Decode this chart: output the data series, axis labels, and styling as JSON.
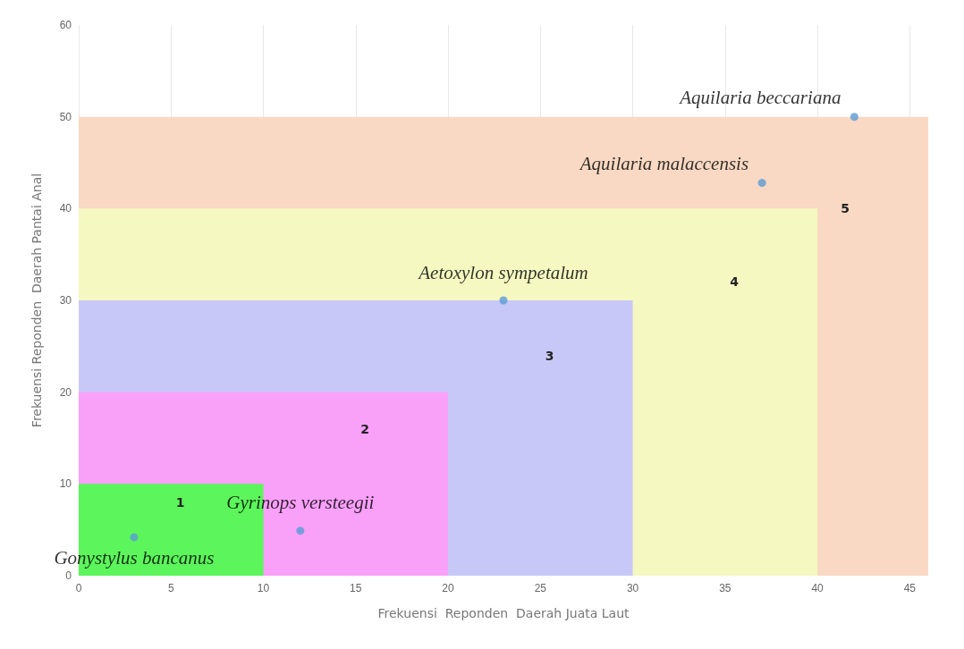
{
  "chart_data": {
    "type": "scatter",
    "xlabel": "Frekuensi  Reponden  Daerah Juata Laut",
    "ylabel": "Frekuensi Reponden  Daerah Pantai Anal",
    "xlim": [
      0,
      46
    ],
    "xticks": [
      0,
      5,
      10,
      15,
      20,
      25,
      30,
      35,
      40,
      45
    ],
    "ylim": [
      0,
      60
    ],
    "yticks": [
      0,
      10,
      20,
      30,
      40,
      50,
      60
    ],
    "grid": "x",
    "series": [
      {
        "type": "area",
        "name": "5",
        "marker": "none",
        "color": "#f9d9c3",
        "x": [
          0,
          46
        ],
        "values": [
          50,
          50
        ]
      },
      {
        "type": "area",
        "name": "4",
        "marker": "none",
        "color": "#f5f8c0",
        "x": [
          0,
          40
        ],
        "values": [
          40,
          40
        ]
      },
      {
        "type": "area",
        "name": "3",
        "marker": "none",
        "color": "#c8c8f8",
        "x": [
          0,
          30
        ],
        "values": [
          30,
          30
        ]
      },
      {
        "type": "area",
        "name": "2",
        "marker": "none",
        "color": "#f9a0f9",
        "x": [
          0,
          20
        ],
        "values": [
          20,
          20
        ]
      },
      {
        "type": "area",
        "name": "1",
        "marker": "none",
        "color": "#5cf55c",
        "x": [
          0,
          10
        ],
        "values": [
          10,
          10
        ]
      },
      {
        "marker": "circle",
        "color": "#5b9bd5",
        "x": [
          3,
          12,
          23,
          37,
          42
        ],
        "values": [
          4.2,
          4.9,
          30,
          42.8,
          50
        ]
      }
    ],
    "annotations": [
      {
        "text": "Gonystylus bancanus",
        "x": 3,
        "y": 4.2
      },
      {
        "text": "Gyrinops versteegii",
        "x": 12,
        "y": 4.9
      },
      {
        "text": "Aetoxylon sympetalum",
        "x": 23,
        "y": 30
      },
      {
        "text": "Aquilaria malaccensis",
        "x": 37,
        "y": 42.8
      },
      {
        "text": "Aquilaria beccariana",
        "x": 42,
        "y": 50
      }
    ]
  }
}
